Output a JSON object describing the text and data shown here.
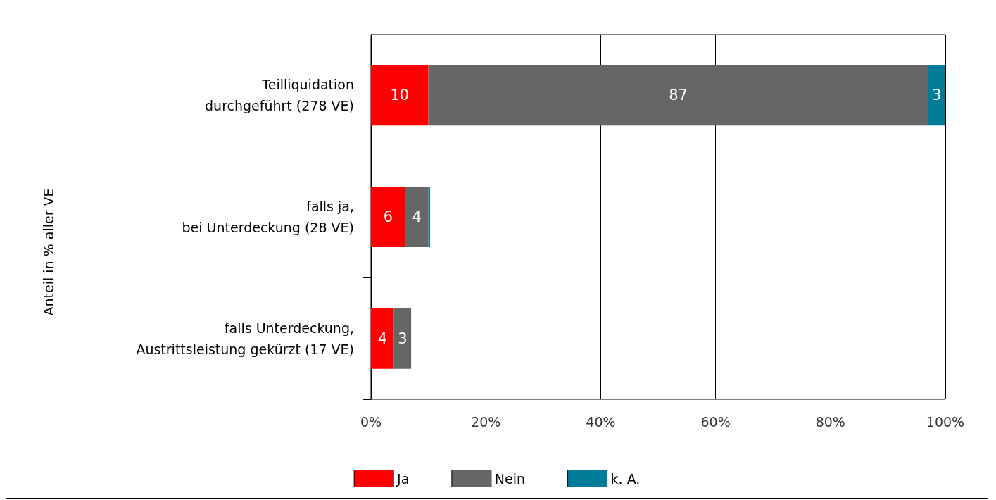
{
  "chart_data": {
    "type": "bar",
    "orientation": "horizontal",
    "stacked": true,
    "annotations": [
      "Anteil in % aller VE"
    ],
    "categories": [
      "Teilliquidation\ndurchgeführt (278 VE)",
      "falls ja,\nbei Unterdeckung (28 VE)",
      "falls Unterdeckung,\nAustrittsleistung gekürzt (17 VE)"
    ],
    "series": [
      {
        "name": "Ja",
        "color": "#ff0000",
        "values": [
          10,
          6,
          4
        ],
        "value_labels": [
          "10",
          "6",
          "4"
        ]
      },
      {
        "name": "Nein",
        "color": "#666666",
        "values": [
          87,
          4,
          3
        ],
        "value_labels": [
          "87",
          "4",
          "3"
        ]
      },
      {
        "name": "k. A.",
        "color": "#007c99",
        "values": [
          3,
          0.3,
          null
        ],
        "value_labels": [
          "3",
          null,
          null
        ]
      }
    ],
    "xlim": [
      0,
      100
    ],
    "xticks": [
      {
        "value": 0,
        "label": "0%"
      },
      {
        "value": 20,
        "label": "20%"
      },
      {
        "value": 40,
        "label": "40%"
      },
      {
        "value": 60,
        "label": "60%"
      },
      {
        "value": 80,
        "label": "80%"
      },
      {
        "value": 100,
        "label": "100%"
      }
    ],
    "grid": "x",
    "legend": "bottom"
  }
}
